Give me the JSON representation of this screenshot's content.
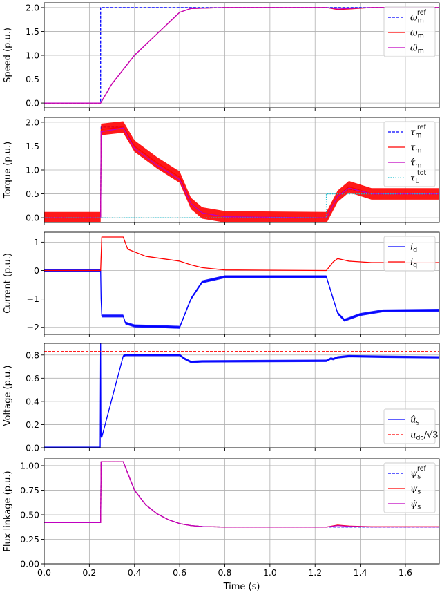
{
  "chart_data": [
    {
      "type": "line",
      "ylabel": "Speed (p.u.)",
      "xlim": [
        0,
        1.75
      ],
      "ylim": [
        -0.1,
        2.1
      ],
      "yticks": [
        0.0,
        0.5,
        1.0,
        1.5,
        2.0
      ],
      "ytick_labels": [
        "0.0",
        "0.5",
        "1.0",
        "1.5",
        "2.0"
      ],
      "legend": {
        "placement": "right",
        "entries": [
          {
            "sym": "ω",
            "sub": "m",
            "sup": "ref"
          },
          {
            "sym": "ω",
            "sub": "m",
            "sup": ""
          },
          {
            "sym": "ω̂",
            "sub": "m",
            "sup": ""
          }
        ]
      },
      "series": [
        {
          "color": "#0000ff",
          "dash": "dashed",
          "x": [
            0,
            0.25,
            0.25,
            1.75
          ],
          "y": [
            0,
            0,
            2,
            2
          ]
        },
        {
          "color": "#ff0000",
          "dash": "solid",
          "x": [
            0,
            0.25,
            0.3,
            0.4,
            0.5,
            0.6,
            0.65,
            0.8,
            1.25,
            1.3,
            1.35,
            1.45,
            1.75
          ],
          "y": [
            0,
            0,
            0.4,
            1.0,
            1.45,
            1.9,
            1.98,
            2.0,
            2.0,
            1.96,
            1.97,
            2.0,
            2.0
          ]
        },
        {
          "color": "#c000c0",
          "dash": "solid",
          "x": [
            0,
            0.25,
            0.3,
            0.4,
            0.5,
            0.6,
            0.65,
            0.8,
            1.25,
            1.3,
            1.35,
            1.45,
            1.75
          ],
          "y": [
            0,
            0,
            0.4,
            1.0,
            1.45,
            1.9,
            1.98,
            2.0,
            2.0,
            1.97,
            1.98,
            2.0,
            2.0
          ]
        }
      ]
    },
    {
      "type": "line",
      "ylabel": "Torque (p.u.)",
      "xlim": [
        0,
        1.75
      ],
      "ylim": [
        -0.1,
        2.1
      ],
      "yticks": [
        0.0,
        0.5,
        1.0,
        1.5,
        2.0
      ],
      "ytick_labels": [
        "0.0",
        "0.5",
        "1.0",
        "1.5",
        "2.0"
      ],
      "legend": {
        "placement": "right",
        "entries": [
          {
            "sym": "τ",
            "sub": "m",
            "sup": "ref"
          },
          {
            "sym": "τ",
            "sub": "m",
            "sup": ""
          },
          {
            "sym": "τ̂",
            "sub": "m",
            "sup": ""
          },
          {
            "sym": "τ",
            "sub": "L",
            "sup": "tot"
          }
        ]
      },
      "series": [
        {
          "color": "#0000ff",
          "dash": "dashed",
          "x": [
            0,
            0.25,
            0.252,
            0.35,
            0.4,
            0.5,
            0.6,
            0.65,
            0.7,
            0.8,
            1.25,
            1.3,
            1.35,
            1.45,
            1.75
          ],
          "y": [
            0,
            0,
            1.9,
            1.9,
            1.45,
            1.1,
            0.8,
            0.3,
            0.1,
            0.02,
            0,
            0.45,
            0.6,
            0.5,
            0.5
          ]
        },
        {
          "color": "#ff0000",
          "dash": "solid",
          "band": 0.12,
          "x": [
            0,
            0.25,
            0.252,
            0.35,
            0.4,
            0.5,
            0.6,
            0.65,
            0.7,
            0.8,
            1.25,
            1.3,
            1.35,
            1.45,
            1.75
          ],
          "y": [
            0,
            0,
            1.85,
            1.9,
            1.5,
            1.15,
            0.85,
            0.3,
            0.1,
            0.02,
            0,
            0.45,
            0.65,
            0.5,
            0.5
          ]
        },
        {
          "color": "#c000c0",
          "dash": "solid",
          "x": [
            0,
            0.25,
            0.252,
            0.35,
            0.4,
            0.5,
            0.6,
            0.65,
            0.7,
            0.8,
            1.25,
            1.3,
            1.35,
            1.45,
            1.75
          ],
          "y": [
            0,
            0,
            1.8,
            1.88,
            1.45,
            1.1,
            0.8,
            0.3,
            0.1,
            0.02,
            0,
            0.45,
            0.62,
            0.5,
            0.5
          ]
        },
        {
          "color": "#17becf",
          "dash": "dotted",
          "x": [
            0,
            1.25,
            1.25,
            1.75
          ],
          "y": [
            0,
            0,
            0.5,
            0.5
          ]
        }
      ]
    },
    {
      "type": "line",
      "ylabel": "Current (p.u.)",
      "xlim": [
        0,
        1.75
      ],
      "ylim": [
        -2.25,
        1.35
      ],
      "yticks": [
        -2,
        -1,
        0,
        1
      ],
      "ytick_labels": [
        "−2",
        "−1",
        "0",
        "1"
      ],
      "legend": {
        "placement": "top-right",
        "entries": [
          {
            "sym": "i",
            "sub": "d",
            "sup": ""
          },
          {
            "sym": "i",
            "sub": "q",
            "sup": ""
          }
        ]
      },
      "series": [
        {
          "color": "#0000ff",
          "dash": "solid",
          "band": 0.05,
          "x": [
            0,
            0.25,
            0.252,
            0.255,
            0.35,
            0.36,
            0.4,
            0.5,
            0.6,
            0.65,
            0.7,
            0.8,
            1.25,
            1.3,
            1.33,
            1.4,
            1.5,
            1.75
          ],
          "y": [
            0,
            0,
            -1.0,
            -1.6,
            -1.6,
            -1.85,
            -1.95,
            -1.97,
            -2.0,
            -1.0,
            -0.4,
            -0.22,
            -0.22,
            -1.5,
            -1.75,
            -1.55,
            -1.42,
            -1.4
          ]
        },
        {
          "color": "#ff0000",
          "dash": "solid",
          "x": [
            0,
            0.25,
            0.255,
            0.35,
            0.37,
            0.45,
            0.6,
            0.65,
            0.7,
            0.8,
            1.25,
            1.28,
            1.3,
            1.35,
            1.45,
            1.75
          ],
          "y": [
            0,
            0,
            1.18,
            1.18,
            0.75,
            0.5,
            0.33,
            0.2,
            0.1,
            0.02,
            0,
            0.3,
            0.42,
            0.33,
            0.28,
            0.28
          ]
        }
      ]
    },
    {
      "type": "line",
      "ylabel": "Voltage (p.u.)",
      "xlim": [
        0,
        1.75
      ],
      "ylim": [
        0,
        0.9
      ],
      "yticks": [
        0.0,
        0.2,
        0.4,
        0.6,
        0.8
      ],
      "ytick_labels": [
        "0.0",
        "0.2",
        "0.4",
        "0.6",
        "0.8"
      ],
      "legend": {
        "placement": "bottom-right",
        "entries": [
          {
            "sym": "û",
            "sub": "s",
            "sup": ""
          },
          {
            "sym": "u",
            "sub": "dc",
            "sup": "",
            "suffix": "/√3"
          }
        ]
      },
      "series": [
        {
          "color": "#0000ff",
          "dash": "solid",
          "band": 0.01,
          "x": [
            0,
            0.248,
            0.25,
            0.251,
            0.252,
            0.255,
            0.35,
            0.36,
            0.6,
            0.62,
            0.65,
            0.7,
            1.25,
            1.27,
            1.28,
            1.3,
            1.35,
            1.5,
            1.75
          ],
          "y": [
            0,
            0,
            0.9,
            0.3,
            0.1,
            0.09,
            0.79,
            0.8,
            0.8,
            0.77,
            0.74,
            0.745,
            0.75,
            0.77,
            0.765,
            0.78,
            0.79,
            0.785,
            0.78
          ]
        },
        {
          "color": "#ff0000",
          "dash": "dashed",
          "x": [
            0,
            1.75
          ],
          "y": [
            0.83,
            0.83
          ]
        }
      ]
    },
    {
      "type": "line",
      "ylabel": "Flux linkage (p.u.)",
      "xlabel": "Time (s)",
      "xlim": [
        0,
        1.75
      ],
      "ylim": [
        0,
        1.07
      ],
      "yticks": [
        0.0,
        0.25,
        0.5,
        0.75,
        1.0
      ],
      "ytick_labels": [
        "0.00",
        "0.25",
        "0.50",
        "0.75",
        "1.00"
      ],
      "xticks": [
        0.0,
        0.2,
        0.4,
        0.6,
        0.8,
        1.0,
        1.2,
        1.4,
        1.6
      ],
      "xtick_labels": [
        "0.0",
        "0.2",
        "0.4",
        "0.6",
        "0.8",
        "1.0",
        "1.2",
        "1.4",
        "1.6"
      ],
      "legend": {
        "placement": "top-right",
        "entries": [
          {
            "sym": "ψ",
            "sub": "s",
            "sup": "ref"
          },
          {
            "sym": "ψ",
            "sub": "s",
            "sup": ""
          },
          {
            "sym": "ψ̂",
            "sub": "s",
            "sup": ""
          }
        ]
      },
      "series": [
        {
          "color": "#0000ff",
          "dash": "dashed",
          "x": [
            0,
            0.25,
            0.252,
            0.35,
            0.4,
            0.45,
            0.5,
            0.55,
            0.6,
            0.65,
            0.7,
            0.8,
            1.75
          ],
          "y": [
            0.42,
            0.42,
            1.04,
            1.04,
            0.75,
            0.6,
            0.51,
            0.45,
            0.41,
            0.39,
            0.38,
            0.375,
            0.375
          ]
        },
        {
          "color": "#ff0000",
          "dash": "solid",
          "x": [
            0,
            0.25,
            0.252,
            0.35,
            0.4,
            0.45,
            0.5,
            0.55,
            0.6,
            0.65,
            0.7,
            0.8,
            1.25,
            1.3,
            1.35,
            1.45,
            1.75
          ],
          "y": [
            0.42,
            0.42,
            1.04,
            1.04,
            0.75,
            0.6,
            0.51,
            0.45,
            0.41,
            0.39,
            0.38,
            0.375,
            0.375,
            0.395,
            0.385,
            0.378,
            0.378
          ]
        },
        {
          "color": "#c000c0",
          "dash": "solid",
          "x": [
            0,
            0.25,
            0.252,
            0.35,
            0.4,
            0.45,
            0.5,
            0.55,
            0.6,
            0.65,
            0.7,
            0.8,
            1.25,
            1.3,
            1.35,
            1.45,
            1.75
          ],
          "y": [
            0.42,
            0.42,
            1.04,
            1.04,
            0.75,
            0.6,
            0.51,
            0.45,
            0.41,
            0.39,
            0.38,
            0.375,
            0.375,
            0.39,
            0.382,
            0.376,
            0.376
          ]
        }
      ]
    }
  ]
}
